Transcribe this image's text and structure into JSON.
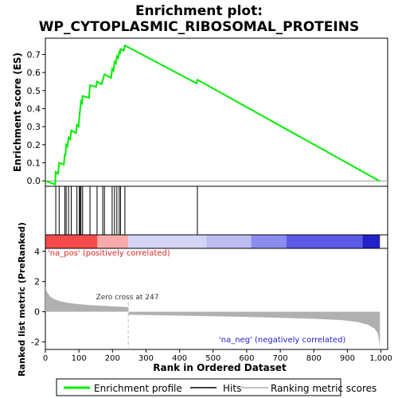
{
  "chart_data": {
    "type": "line",
    "title": "Enrichment plot:\nWP_CYTOPLASMIC_RIBOSOMAL_PROTEINS",
    "title_lines": [
      "Enrichment plot:",
      "WP_CYTOPLASMIC_RIBOSOMAL_PROTEINS"
    ],
    "es_panel": {
      "ylabel": "Enrichment score (ES)",
      "ylim": [
        -0.03,
        0.79
      ],
      "yticks": [
        "0.0",
        "0.1",
        "0.2",
        "0.3",
        "0.4",
        "0.5",
        "0.6",
        "0.7"
      ],
      "ytick_values": [
        0.0,
        0.1,
        0.2,
        0.3,
        0.4,
        0.5,
        0.6,
        0.7
      ],
      "grid": false,
      "series": [
        {
          "name": "Enrichment profile",
          "color": "#00ee00",
          "points": [
            [
              0,
              0.0
            ],
            [
              29,
              -0.02
            ],
            [
              31,
              0.05
            ],
            [
              38,
              0.04
            ],
            [
              41,
              0.1
            ],
            [
              55,
              0.09
            ],
            [
              58,
              0.15
            ],
            [
              60,
              0.14
            ],
            [
              62,
              0.2
            ],
            [
              66,
              0.19
            ],
            [
              69,
              0.24
            ],
            [
              74,
              0.23
            ],
            [
              77,
              0.28
            ],
            [
              91,
              0.265
            ],
            [
              94,
              0.31
            ],
            [
              99,
              0.3
            ],
            [
              101,
              0.35
            ],
            [
              104,
              0.4
            ],
            [
              106,
              0.44
            ],
            [
              109,
              0.43
            ],
            [
              111,
              0.47
            ],
            [
              130,
              0.46
            ],
            [
              133,
              0.53
            ],
            [
              151,
              0.52
            ],
            [
              154,
              0.55
            ],
            [
              167,
              0.535
            ],
            [
              171,
              0.56
            ],
            [
              176,
              0.59
            ],
            [
              196,
              0.57
            ],
            [
              199,
              0.62
            ],
            [
              203,
              0.61
            ],
            [
              206,
              0.66
            ],
            [
              210,
              0.65
            ],
            [
              213,
              0.69
            ],
            [
              217,
              0.68
            ],
            [
              220,
              0.71
            ],
            [
              222,
              0.7
            ],
            [
              224,
              0.73
            ],
            [
              233,
              0.72
            ],
            [
              237,
              0.75
            ],
            [
              451,
              0.54
            ],
            [
              453,
              0.56
            ],
            [
              995,
              0.0
            ]
          ]
        }
      ]
    },
    "hits": {
      "name": "Hits",
      "positions": [
        31,
        41,
        58,
        62,
        69,
        77,
        94,
        101,
        104,
        106,
        111,
        133,
        154,
        171,
        176,
        199,
        206,
        213,
        220,
        224,
        237,
        453
      ]
    },
    "metric_panel": {
      "ylabel": "Ranked list metric (PreRanked)",
      "xlabel": "Rank in Ordered Dataset",
      "ylim": [
        -2.5,
        4.2
      ],
      "yticks": [
        "4",
        "2",
        "0",
        "-2"
      ],
      "ytick_values": [
        4,
        2,
        0,
        -2
      ],
      "xlim": [
        0,
        1020
      ],
      "xticks": [
        "0",
        "100",
        "200",
        "300",
        "400",
        "500",
        "600",
        "700",
        "800",
        "900",
        "1,000"
      ],
      "xtick_values": [
        0,
        100,
        200,
        300,
        400,
        500,
        600,
        700,
        800,
        900,
        1000
      ],
      "series": [
        {
          "name": "Ranking metric scores",
          "color": "#b0b0b0",
          "points": [
            [
              0,
              1.7
            ],
            [
              3,
              1.4
            ],
            [
              8,
              1.2
            ],
            [
              15,
              1.0
            ],
            [
              25,
              0.85
            ],
            [
              40,
              0.72
            ],
            [
              60,
              0.62
            ],
            [
              90,
              0.52
            ],
            [
              130,
              0.44
            ],
            [
              180,
              0.38
            ],
            [
              247,
              0.3
            ],
            [
              248,
              -0.2
            ],
            [
              300,
              -0.22
            ],
            [
              400,
              -0.26
            ],
            [
              500,
              -0.3
            ],
            [
              600,
              -0.34
            ],
            [
              700,
              -0.4
            ],
            [
              800,
              -0.47
            ],
            [
              880,
              -0.55
            ],
            [
              930,
              -0.68
            ],
            [
              960,
              -0.85
            ],
            [
              980,
              -1.1
            ],
            [
              990,
              -1.4
            ],
            [
              995,
              -2.0
            ],
            [
              997,
              -2.3
            ]
          ]
        }
      ],
      "zero_cross_label": "Zero cross at 247",
      "zero_cross": 247,
      "pos_label": "'na_pos' (positively correlated)",
      "neg_label": "'na_neg' (negatively correlated)"
    },
    "colorbar": {
      "segments": [
        {
          "from": 0,
          "to": 155,
          "color": "#f54a4a"
        },
        {
          "from": 155,
          "to": 247,
          "color": "#f7aaaa"
        },
        {
          "from": 247,
          "to": 480,
          "color": "#d4d4f5"
        },
        {
          "from": 480,
          "to": 613,
          "color": "#bcbcf2"
        },
        {
          "from": 613,
          "to": 718,
          "color": "#8c8cee"
        },
        {
          "from": 718,
          "to": 945,
          "color": "#5a5ae6"
        },
        {
          "from": 945,
          "to": 997,
          "color": "#2222c8"
        }
      ]
    },
    "legend": {
      "placement": "bottom",
      "items": [
        {
          "label": "Enrichment profile",
          "color": "#00ee00",
          "kind": "line"
        },
        {
          "label": "Hits",
          "color": "#000000",
          "kind": "line"
        },
        {
          "label": "Ranking metric scores",
          "color": "#c0c0c0",
          "kind": "line"
        }
      ]
    }
  }
}
